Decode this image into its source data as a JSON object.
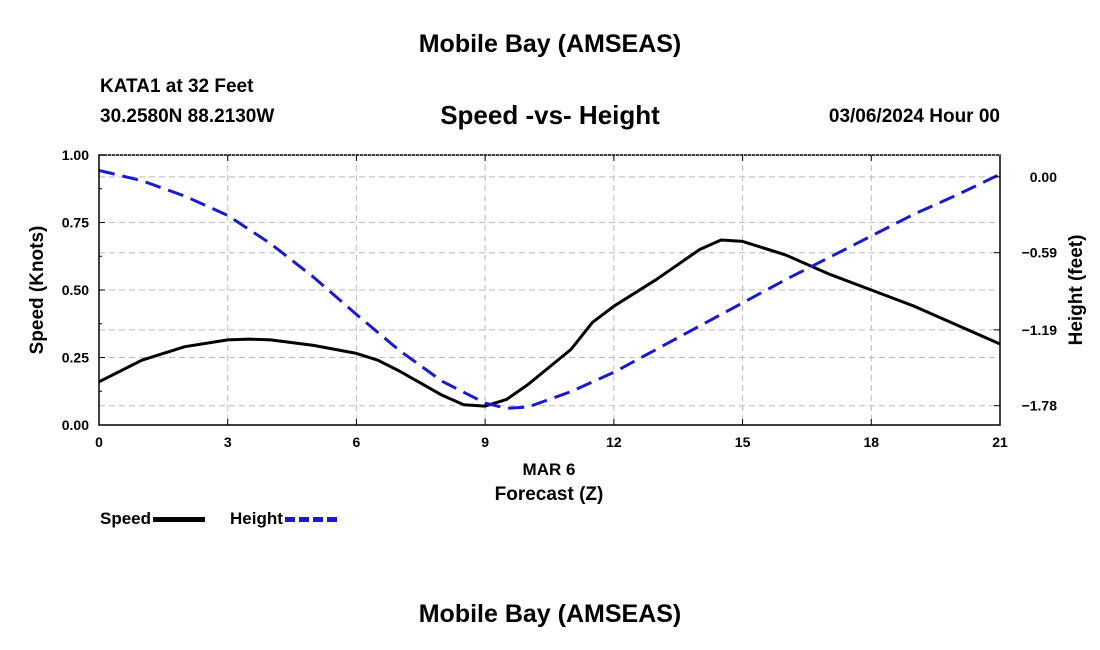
{
  "header": {
    "title": "Mobile Bay (AMSEAS)",
    "station": "KATA1 at 32 Feet",
    "coords": "30.2580N  88.2130W",
    "timestamp": "03/06/2024 Hour 00"
  },
  "footer": {
    "title": "Mobile Bay (AMSEAS)"
  },
  "chart_data": {
    "type": "line",
    "title": "Speed -vs- Height",
    "xlabel": "Forecast (Z)",
    "x_sublabel": "MAR 6",
    "ylabel": "Speed (Knots)",
    "y2label": "Height (feet)",
    "xlim": [
      0,
      21
    ],
    "ylim": [
      0,
      1.0
    ],
    "y2lim": [
      -1.93,
      0.17
    ],
    "x_ticks": [
      0,
      3,
      6,
      9,
      12,
      15,
      18,
      21
    ],
    "y_ticks": [
      "0.00",
      "0.25",
      "0.50",
      "0.75",
      "1.00"
    ],
    "y2_ticks": [
      {
        "value": 0.0,
        "label": "0.00"
      },
      {
        "value": -0.59,
        "label": "−0.59"
      },
      {
        "value": -1.19,
        "label": "−1.19"
      },
      {
        "value": -1.78,
        "label": "−1.78"
      }
    ],
    "grid": true,
    "legend_position": "bottom-left",
    "series": [
      {
        "name": "Speed",
        "axis": "left",
        "color": "#000000",
        "style": "solid",
        "points": [
          [
            0,
            0.16
          ],
          [
            1,
            0.24
          ],
          [
            2,
            0.29
          ],
          [
            3,
            0.315
          ],
          [
            3.5,
            0.318
          ],
          [
            4,
            0.315
          ],
          [
            5,
            0.295
          ],
          [
            6,
            0.265
          ],
          [
            6.5,
            0.24
          ],
          [
            7,
            0.2
          ],
          [
            8,
            0.11
          ],
          [
            8.5,
            0.075
          ],
          [
            9,
            0.07
          ],
          [
            9.5,
            0.095
          ],
          [
            10,
            0.15
          ],
          [
            11,
            0.28
          ],
          [
            11.5,
            0.38
          ],
          [
            12,
            0.44
          ],
          [
            13,
            0.54
          ],
          [
            14,
            0.65
          ],
          [
            14.5,
            0.685
          ],
          [
            15,
            0.68
          ],
          [
            16,
            0.63
          ],
          [
            17,
            0.56
          ],
          [
            18,
            0.5
          ],
          [
            19,
            0.44
          ],
          [
            20,
            0.37
          ],
          [
            21,
            0.3
          ]
        ]
      },
      {
        "name": "Height",
        "axis": "right",
        "color": "#1a1acc",
        "style": "dashed",
        "points": [
          [
            0,
            0.05
          ],
          [
            1,
            -0.03
          ],
          [
            2,
            -0.15
          ],
          [
            3,
            -0.3
          ],
          [
            4,
            -0.52
          ],
          [
            5,
            -0.78
          ],
          [
            6,
            -1.07
          ],
          [
            7,
            -1.35
          ],
          [
            8,
            -1.59
          ],
          [
            9,
            -1.76
          ],
          [
            9.5,
            -1.8
          ],
          [
            10,
            -1.79
          ],
          [
            11,
            -1.67
          ],
          [
            12,
            -1.52
          ],
          [
            13,
            -1.34
          ],
          [
            14,
            -1.16
          ],
          [
            15,
            -0.98
          ],
          [
            16,
            -0.8
          ],
          [
            17,
            -0.63
          ],
          [
            18,
            -0.46
          ],
          [
            19,
            -0.29
          ],
          [
            20,
            -0.14
          ],
          [
            21,
            0.02
          ]
        ]
      }
    ]
  }
}
